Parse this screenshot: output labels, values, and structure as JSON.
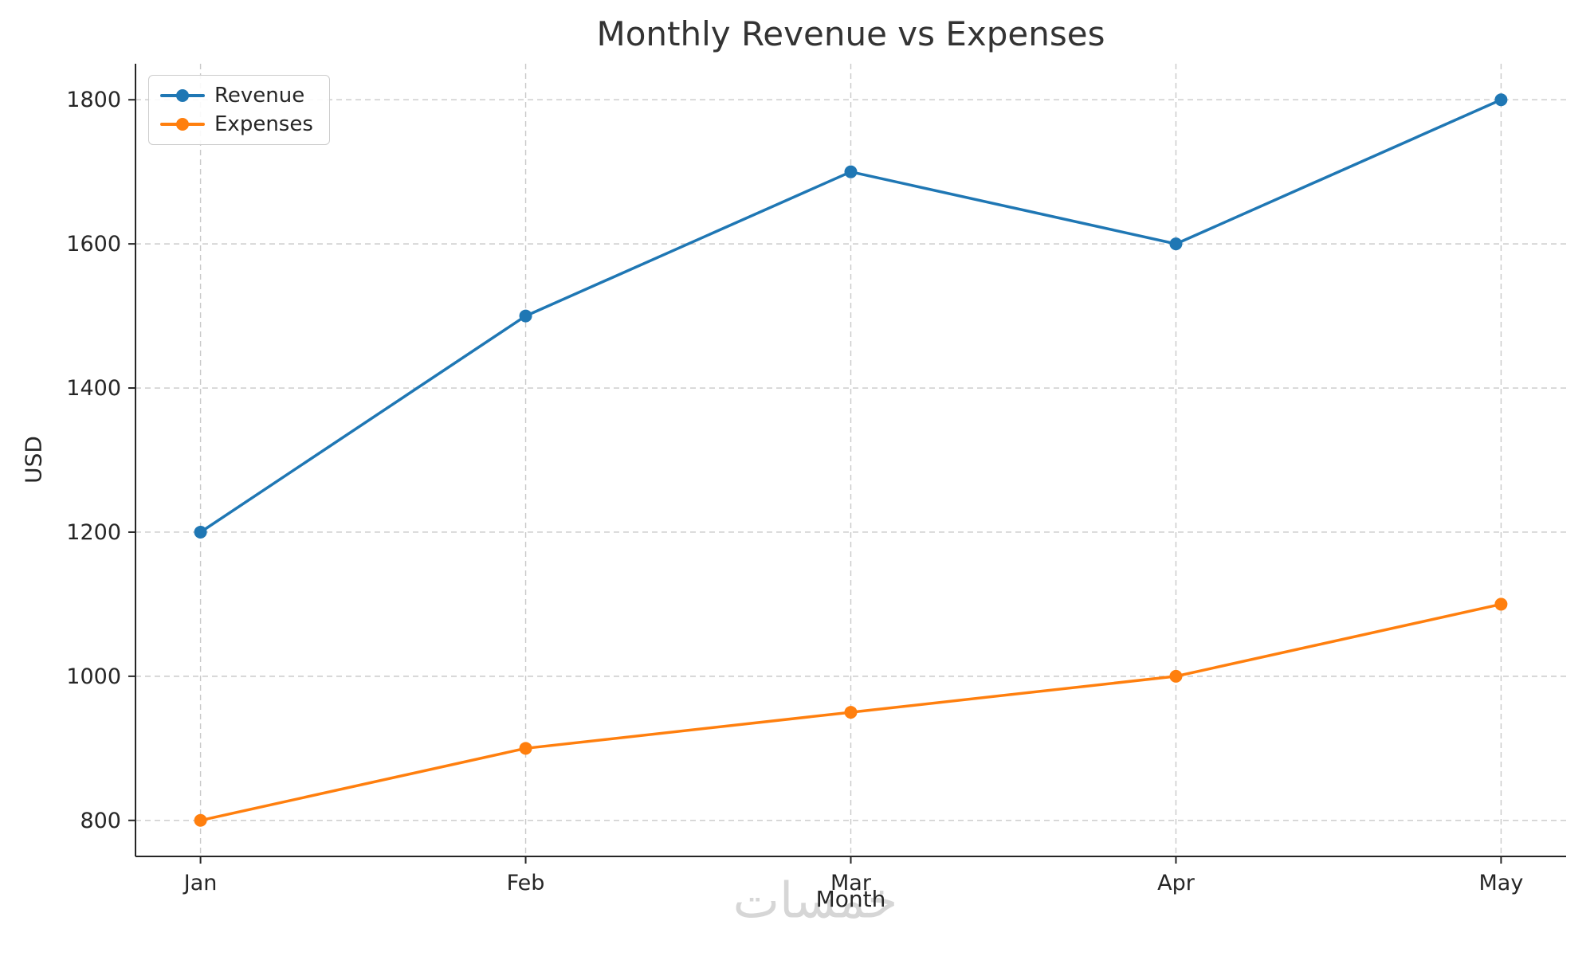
{
  "watermark": {
    "text": "خمسات"
  },
  "chart_data": {
    "type": "line",
    "title": "Monthly Revenue vs Expenses",
    "xlabel": "Month",
    "ylabel": "USD",
    "categories": [
      "Jan",
      "Feb",
      "Mar",
      "Apr",
      "May"
    ],
    "series": [
      {
        "name": "Revenue",
        "color": "#1f77b4",
        "values": [
          1200,
          1500,
          1700,
          1600,
          1800
        ]
      },
      {
        "name": "Expenses",
        "color": "#ff7f0e",
        "values": [
          800,
          900,
          950,
          1000,
          1100
        ]
      }
    ],
    "yticks": [
      800,
      1000,
      1200,
      1400,
      1600,
      1800
    ],
    "ylim": [
      750,
      1850
    ],
    "grid": true,
    "legend_position": "upper left",
    "colors": {
      "grid": "#c9c9c9",
      "spine": "#262626",
      "title": "#333333"
    }
  }
}
